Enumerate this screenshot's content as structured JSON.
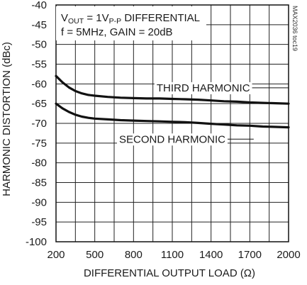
{
  "chart_data": {
    "type": "line",
    "xlabel": "DIFFERENTIAL OUTPUT LOAD (Ω)",
    "ylabel": "HARMONIC DISTORTION (dBc)",
    "xlim": [
      200,
      2000
    ],
    "ylim": [
      -100,
      -40
    ],
    "xticks": [
      200,
      500,
      800,
      1100,
      1400,
      1700,
      2000
    ],
    "yticks": [
      -40,
      -45,
      -50,
      -55,
      -60,
      -65,
      -70,
      -75,
      -80,
      -85,
      -90,
      -95,
      -100
    ],
    "grid": true,
    "annotation": {
      "line1": {
        "v": "V",
        "vsub": "OUT",
        "eq": " = 1V",
        "psub": "P-P",
        "rest": " DIFFERENTIAL"
      },
      "line2": "f = 5MHz, GAIN = 20dB"
    },
    "part_number": "MAX2036 toc19",
    "series": [
      {
        "name": "THIRD HARMONIC",
        "x": [
          200,
          250,
          300,
          350,
          400,
          450,
          500,
          600,
          700,
          800,
          900,
          1000,
          1100,
          1200,
          1300,
          1400,
          1500,
          1600,
          1700,
          1800,
          1900,
          2000
        ],
        "y": [
          -58.0,
          -59.6,
          -60.9,
          -61.8,
          -62.4,
          -62.8,
          -63.0,
          -63.3,
          -63.5,
          -63.6,
          -63.7,
          -63.7,
          -63.8,
          -63.9,
          -64.0,
          -64.2,
          -64.4,
          -64.5,
          -64.7,
          -64.8,
          -64.9,
          -65.0
        ]
      },
      {
        "name": "SECOND HARMONIC",
        "x": [
          200,
          250,
          300,
          350,
          400,
          450,
          500,
          600,
          700,
          800,
          900,
          1000,
          1100,
          1200,
          1300,
          1400,
          1500,
          1600,
          1700,
          1800,
          1900,
          2000
        ],
        "y": [
          -65.0,
          -66.2,
          -67.1,
          -67.8,
          -68.3,
          -68.6,
          -68.8,
          -69.0,
          -69.2,
          -69.3,
          -69.4,
          -69.5,
          -69.6,
          -69.7,
          -69.9,
          -70.1,
          -70.3,
          -70.5,
          -70.6,
          -70.8,
          -70.9,
          -71.0
        ]
      }
    ]
  }
}
